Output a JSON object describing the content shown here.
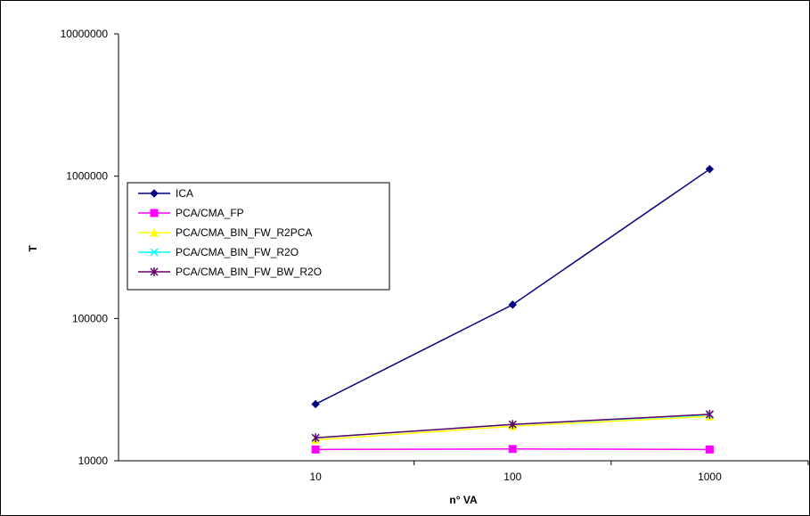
{
  "chart_data": {
    "type": "line",
    "xscale": "log",
    "yscale": "log",
    "x": [
      10,
      100,
      1000
    ],
    "x_tick_labels": [
      "10",
      "100",
      "1000"
    ],
    "y_tick_labels": [
      "10000000",
      "1000000",
      "100000",
      "10000"
    ],
    "ylim": [
      10000,
      10000000
    ],
    "xlabel": "n° VA",
    "ylabel": "T",
    "grid": false,
    "legend_position": "center-left",
    "series": [
      {
        "name": "ICA",
        "color": "#000080",
        "marker": "diamond",
        "values": [
          25000,
          125000,
          1120000
        ]
      },
      {
        "name": "PCA/CMA_FP",
        "color": "#FF00FF",
        "marker": "square",
        "values": [
          12000,
          12100,
          12000
        ]
      },
      {
        "name": "PCA/CMA_BIN_FW_R2PCA",
        "color": "#FFFF00",
        "marker": "triangle",
        "values": [
          14000,
          17500,
          20500
        ]
      },
      {
        "name": "PCA/CMA_BIN_FW_R2O",
        "color": "#00FFFF",
        "marker": "x",
        "values": [
          14500,
          18000,
          21000
        ]
      },
      {
        "name": "PCA/CMA_BIN_FW_BW_R2O",
        "color": "#660066",
        "marker": "star",
        "values": [
          14500,
          18000,
          21200
        ]
      }
    ]
  }
}
